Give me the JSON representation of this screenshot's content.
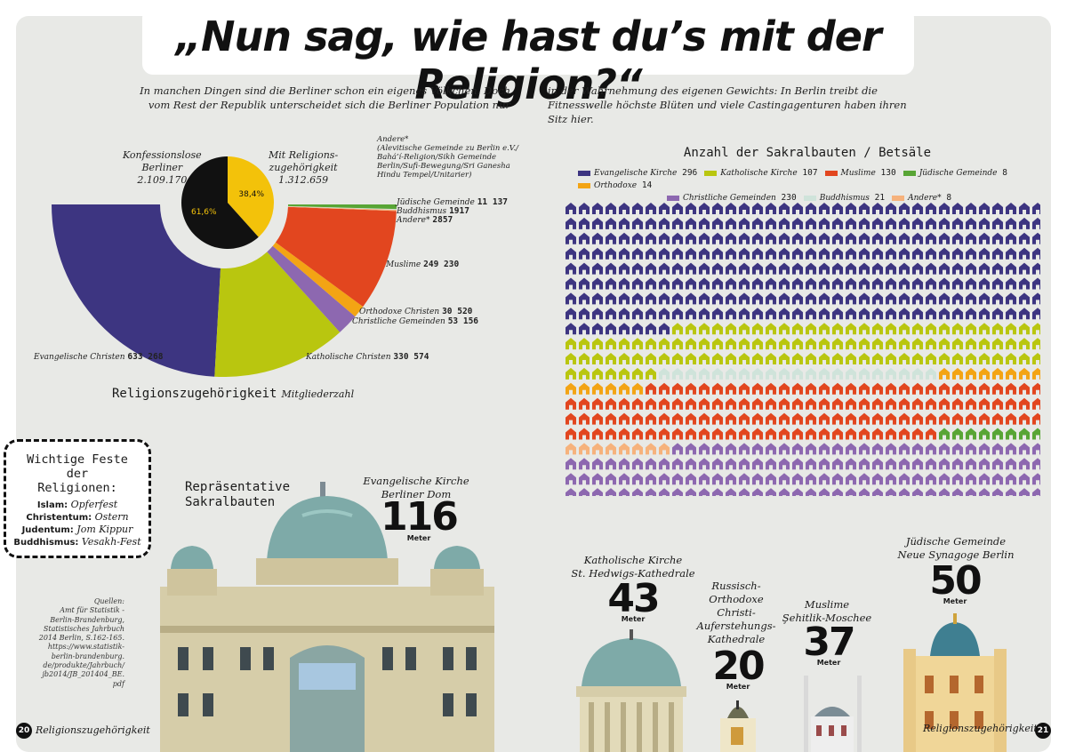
{
  "title": "„Nun sag, wie hast du’s mit der Religion?“",
  "intro_left": "In manchen Dingen sind die Berliner schon ein eigenes Völkchen. Doch vom Rest der Republik unterscheidet sich die Berliner Population nur",
  "intro_right": "in der Wahrnehmung des eigenen Gewichts: In Berlin treibt die Fitnesswelle höchste Blüten und viele Castingagenturen haben ihren Sitz hier.",
  "colors": {
    "evangelisch": "#3d3581",
    "katholisch": "#b9c60f",
    "muslime": "#e2461f",
    "juedisch": "#58a535",
    "orthodoxe": "#f3a414",
    "christliche": "#8d68b0",
    "buddhismus": "#cfe3da",
    "andere": "#f6b27c",
    "pie_konfessionslos": "#111111",
    "pie_religion": "#f3c20a"
  },
  "chart_data": [
    {
      "type": "pie",
      "labels": [
        "Konfessionslose Berliner",
        "Mit Religions-zugehörigkeit"
      ],
      "values": [
        2109170,
        1312659
      ],
      "percent_labels": [
        "61,6%",
        "38,4%"
      ],
      "label_texts": [
        {
          "name": "Konfessionslose\nBerliner",
          "value": "2.109.170"
        },
        {
          "name": "Mit Religions-\nzugehörigkeit",
          "value": "1.312.659"
        }
      ]
    },
    {
      "type": "pie",
      "subtype": "half-donut",
      "title": "Religionszugehörigkeit",
      "subtitle": "Mitgliederzahl",
      "slices": [
        {
          "name": "Evangelische Christen",
          "value": 633268,
          "value_label": "633 268",
          "color": "#3d3581"
        },
        {
          "name": "Katholische Christen",
          "value": 330574,
          "value_label": "330 574",
          "color": "#b9c60f"
        },
        {
          "name": "Christliche Gemeinden",
          "value": 53156,
          "value_label": "53 156",
          "color": "#8d68b0"
        },
        {
          "name": "Orthodoxe Christen",
          "value": 30520,
          "value_label": "30 520",
          "color": "#f3a414"
        },
        {
          "name": "Muslime",
          "value": 249230,
          "value_label": "249 230",
          "color": "#e2461f"
        },
        {
          "name": "Andere*",
          "value": 2857,
          "value_label": "2857",
          "color": "#f6b27c"
        },
        {
          "name": "Buddhismus",
          "value": 1917,
          "value_label": "1917",
          "color": "#cfe3da"
        },
        {
          "name": "Jüdische Gemeinde",
          "value": 11137,
          "value_label": "11 137",
          "color": "#58a535"
        }
      ],
      "andere_note": "Andere*\n(Alevitische Gemeinde zu Berlin e.V./\nBahá’í-Religion/Sikh Gemeinde\nBerlin/Sufi-Bewegung/Sri Ganesha\nHindu Tempel/Unitarier)"
    },
    {
      "type": "waffle",
      "title": "Anzahl der Sakralbauten / Betsäle",
      "columns": 36,
      "series": [
        {
          "name": "Evangelische Kirche",
          "value": 296,
          "color": "#3d3581"
        },
        {
          "name": "Katholische Kirche",
          "value": 107,
          "color": "#b9c60f"
        },
        {
          "name": "Buddhismus",
          "value": 21,
          "color": "#cfe3da"
        },
        {
          "name": "Orthodoxe",
          "value": 14,
          "color": "#f3a414"
        },
        {
          "name": "Muslime",
          "value": 130,
          "color": "#e2461f"
        },
        {
          "name": "Jüdische Gemeinde",
          "value": 8,
          "color": "#58a535"
        },
        {
          "name": "Andere*",
          "value": 8,
          "color": "#f6b27c"
        },
        {
          "name": "Christliche Gemeinden",
          "value": 230,
          "color": "#8d68b0"
        }
      ],
      "legend_rows": [
        [
          {
            "name": "Evangelische Kirche",
            "value": "296",
            "color": "#3d3581"
          },
          {
            "name": "Katholische Kirche",
            "value": "107",
            "color": "#b9c60f"
          },
          {
            "name": "Muslime",
            "value": "130",
            "color": "#e2461f"
          },
          {
            "name": "Jüdische Gemeinde",
            "value": "8",
            "color": "#58a535"
          },
          {
            "name": "Orthodoxe",
            "value": "14",
            "color": "#f3a414"
          }
        ],
        [
          {
            "name": "Christliche Gemeinden",
            "value": "230",
            "color": "#8d68b0"
          },
          {
            "name": "Buddhismus",
            "value": "21",
            "color": "#cfe3da"
          },
          {
            "name": "Andere*",
            "value": "8",
            "color": "#f6b27c"
          }
        ]
      ]
    }
  ],
  "feste": {
    "title": "Wichtige Feste der Religionen:",
    "items": [
      {
        "religion": "Islam:",
        "fest": "Opferfest"
      },
      {
        "religion": "Christentum:",
        "fest": "Ostern"
      },
      {
        "religion": "Judentum:",
        "fest": "Jom Kippur"
      },
      {
        "religion": "Buddhismus:",
        "fest": "Vesakh-Fest"
      }
    ]
  },
  "sakral_title": "Repräsentative Sakralbauten",
  "buildings": [
    {
      "name": "Evangelische Kirche\nBerliner Dom",
      "height": "116",
      "unit": "Meter"
    },
    {
      "name": "Katholische Kirche\nSt. Hedwigs-Kathedrale",
      "height": "43",
      "unit": "Meter"
    },
    {
      "name": "Russisch-\nOrthodoxe\nChristi-\nAuferstehungs-\nKathedrale",
      "height": "20",
      "unit": "Meter"
    },
    {
      "name": "Muslime\nŞehitlik-Moschee",
      "height": "37",
      "unit": "Meter"
    },
    {
      "name": "Jüdische Gemeinde\nNeue Synagoge Berlin",
      "height": "50",
      "unit": "Meter"
    }
  ],
  "sources": "Quellen:\nAmt für Statistik -\nBerlin-Brandenburg,\nStatistisches Jahrbuch\n2014 Berlin, S.162-165.\nhttps://www.statistik-\nberlin-brandenburg.\nde/produkte/Jahrbuch/\njb2014/JB_201404_BE.\npdf",
  "footer_left": {
    "page": "20",
    "text": "Religionszugehörigkeit"
  },
  "footer_right": {
    "page": "21",
    "text": "Religionszugehörigkeit"
  }
}
